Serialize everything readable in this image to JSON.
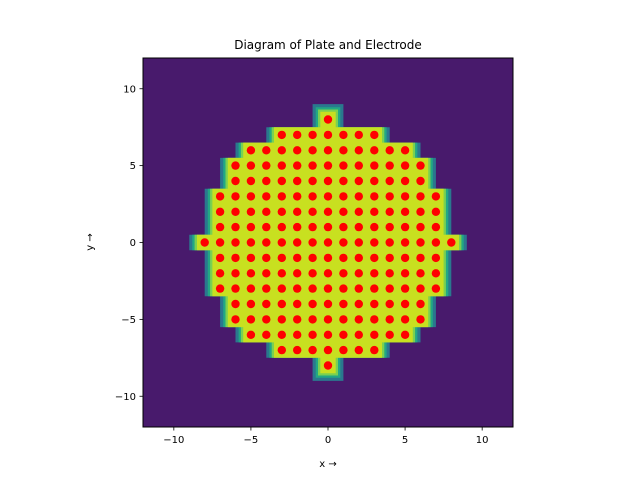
{
  "chart_data": {
    "type": "scatter",
    "title": "Diagram of Plate and Electrode",
    "xlabel": "x →",
    "ylabel": "y →",
    "xlim": [
      -12,
      12
    ],
    "ylim": [
      -12,
      12
    ],
    "xticks": [
      -10,
      -5,
      0,
      5,
      10
    ],
    "yticks": [
      -10,
      -5,
      0,
      5,
      10
    ],
    "xtick_labels": [
      "−10",
      "−5",
      "0",
      "5",
      "10"
    ],
    "ytick_labels": [
      "−10",
      "−5",
      "0",
      "5",
      "10"
    ],
    "grid": false,
    "background_color": "#481a6c",
    "plate_colors": [
      "#2a788e",
      "#22a884",
      "#7ad151",
      "#c8e020"
    ],
    "electrode_color": "#ff0000",
    "electrode_rows": [
      {
        "y": 8,
        "x_min": 0,
        "x_max": 0
      },
      {
        "y": 7,
        "x_min": -3,
        "x_max": 3
      },
      {
        "y": 6,
        "x_min": -5,
        "x_max": 5
      },
      {
        "y": 5,
        "x_min": -6,
        "x_max": 6
      },
      {
        "y": 4,
        "x_min": -6,
        "x_max": 6
      },
      {
        "y": 3,
        "x_min": -7,
        "x_max": 7
      },
      {
        "y": 2,
        "x_min": -7,
        "x_max": 7
      },
      {
        "y": 1,
        "x_min": -7,
        "x_max": 7
      },
      {
        "y": 0,
        "x_min": -8,
        "x_max": 8
      },
      {
        "y": -1,
        "x_min": -7,
        "x_max": 7
      },
      {
        "y": -2,
        "x_min": -7,
        "x_max": 7
      },
      {
        "y": -3,
        "x_min": -7,
        "x_max": 7
      },
      {
        "y": -4,
        "x_min": -6,
        "x_max": 6
      },
      {
        "y": -5,
        "x_min": -6,
        "x_max": 6
      },
      {
        "y": -6,
        "x_min": -5,
        "x_max": 5
      },
      {
        "y": -7,
        "x_min": -3,
        "x_max": 3
      },
      {
        "y": -8,
        "x_min": 0,
        "x_max": 0
      }
    ]
  }
}
